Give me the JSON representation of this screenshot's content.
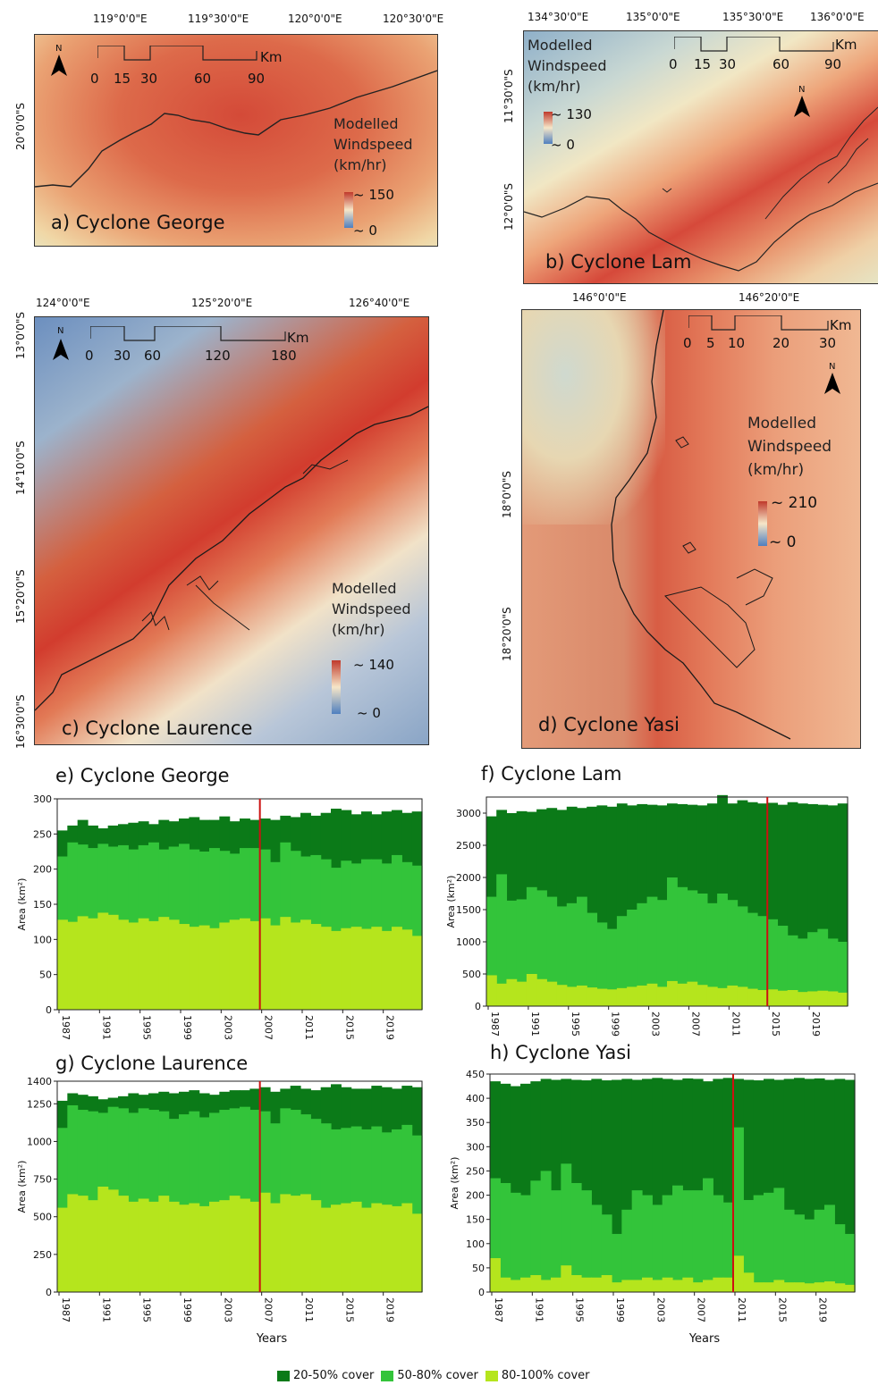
{
  "maps": [
    {
      "id": "a",
      "label": "a) Cyclone George",
      "lon_ticks": [
        "119°0'0\"E",
        "119°30'0\"E",
        "120°0'0\"E",
        "120°30'0\"E"
      ],
      "lat_ticks": [
        "20°0'0\"S"
      ],
      "legend_title": [
        "Modelled",
        "Windspeed",
        "(km/hr)"
      ],
      "legend_max": "~ 150",
      "legend_min": "~ 0",
      "scale": [
        "0",
        "15",
        "30",
        "60",
        "90"
      ],
      "scale_unit": "Km"
    },
    {
      "id": "b",
      "label": "b) Cyclone Lam",
      "lon_ticks": [
        "134°30'0\"E",
        "135°0'0\"E",
        "135°30'0\"E",
        "136°0'0\"E"
      ],
      "lat_ticks": [
        "11°30'0\"S",
        "12°0'0\"S"
      ],
      "legend_title": [
        "Modelled",
        "Windspeed",
        "(km/hr)"
      ],
      "legend_max": "~ 130",
      "legend_min": "~ 0",
      "scale": [
        "0",
        "15",
        "30",
        "60",
        "90"
      ],
      "scale_unit": "Km"
    },
    {
      "id": "c",
      "label": "c) Cyclone Laurence",
      "lon_ticks": [
        "124°0'0\"E",
        "125°20'0\"E",
        "126°40'0\"E"
      ],
      "lat_ticks": [
        "13°0'0\"S",
        "14°10'0\"S",
        "15°20'0\"S",
        "16°30'0\"S"
      ],
      "legend_title": [
        "Modelled",
        "Windspeed",
        "(km/hr)"
      ],
      "legend_max": "~ 140",
      "legend_min": "~ 0",
      "scale": [
        "0",
        "30",
        "60",
        "120",
        "180"
      ],
      "scale_unit": "Km"
    },
    {
      "id": "d",
      "label": "d) Cyclone Yasi",
      "lon_ticks": [
        "146°0'0\"E",
        "146°20'0\"E"
      ],
      "lat_ticks": [
        "18°0'0\"S",
        "18°20'0\"S"
      ],
      "legend_title": [
        "Modelled",
        "Windspeed",
        "(km/hr)"
      ],
      "legend_max": "~ 210",
      "legend_min": "~ 0",
      "scale": [
        "0",
        "5",
        "10",
        "20",
        "30"
      ],
      "scale_unit": "Km"
    }
  ],
  "colors": {
    "c2050": "#0b7a18",
    "c5080": "#33c43a",
    "c80100": "#b5e51d",
    "event_line": "#cc1111"
  },
  "legend": [
    "20-50% cover",
    "50-80% cover",
    "80-100% cover"
  ],
  "chart_data": [
    {
      "type": "area",
      "title": "e) Cyclone George",
      "ylabel": "Area (km²)",
      "xlabel": "",
      "x": [
        1987,
        1988,
        1989,
        1990,
        1991,
        1992,
        1993,
        1994,
        1995,
        1996,
        1997,
        1998,
        1999,
        2000,
        2001,
        2002,
        2003,
        2004,
        2005,
        2006,
        2007,
        2008,
        2009,
        2010,
        2011,
        2012,
        2013,
        2014,
        2015,
        2016,
        2017,
        2018,
        2019,
        2020,
        2021,
        2022
      ],
      "xticks": [
        "1987",
        "1991",
        "1995",
        "1999",
        "2003",
        "2007",
        "2011",
        "2015",
        "2019"
      ],
      "ylim": [
        0,
        300
      ],
      "yticks": [
        0,
        50,
        100,
        150,
        200,
        250,
        300
      ],
      "event_year": 2007,
      "series": [
        {
          "name": "80-100% cover",
          "values": [
            128,
            125,
            133,
            130,
            138,
            135,
            128,
            124,
            130,
            126,
            132,
            128,
            122,
            118,
            120,
            116,
            124,
            128,
            130,
            126,
            130,
            120,
            132,
            124,
            128,
            122,
            118,
            112,
            116,
            118,
            115,
            118,
            112,
            118,
            114,
            105
          ]
        },
        {
          "name": "50-80% cover",
          "values": [
            218,
            238,
            235,
            230,
            236,
            232,
            234,
            228,
            234,
            238,
            228,
            232,
            236,
            228,
            225,
            230,
            226,
            222,
            230,
            230,
            228,
            210,
            238,
            226,
            218,
            220,
            214,
            202,
            212,
            208,
            214,
            214,
            208,
            220,
            210,
            205
          ]
        },
        {
          "name": "20-50% cover",
          "values": [
            255,
            262,
            270,
            262,
            258,
            262,
            264,
            266,
            268,
            264,
            270,
            268,
            272,
            274,
            270,
            270,
            275,
            268,
            272,
            270,
            272,
            270,
            276,
            274,
            280,
            276,
            280,
            286,
            284,
            278,
            282,
            278,
            282,
            284,
            280,
            282
          ]
        }
      ]
    },
    {
      "type": "area",
      "title": "f) Cyclone Lam",
      "ylabel": "Area (km²)",
      "xlabel": "",
      "x": [
        1987,
        1988,
        1989,
        1990,
        1991,
        1992,
        1993,
        1994,
        1995,
        1996,
        1997,
        1998,
        1999,
        2000,
        2001,
        2002,
        2003,
        2004,
        2005,
        2006,
        2007,
        2008,
        2009,
        2010,
        2011,
        2012,
        2013,
        2014,
        2015,
        2016,
        2017,
        2018,
        2019,
        2020,
        2021,
        2022
      ],
      "xticks": [
        "1987",
        "1991",
        "1995",
        "1999",
        "2003",
        "2007",
        "2011",
        "2015",
        "2019"
      ],
      "ylim": [
        0,
        3250
      ],
      "yticks": [
        0,
        500,
        1000,
        1500,
        2000,
        2500,
        3000
      ],
      "event_year": 2015,
      "series": [
        {
          "name": "80-100% cover",
          "values": [
            480,
            350,
            420,
            380,
            500,
            420,
            380,
            330,
            300,
            320,
            290,
            270,
            260,
            280,
            300,
            320,
            350,
            300,
            390,
            350,
            380,
            330,
            300,
            280,
            320,
            300,
            270,
            250,
            260,
            240,
            250,
            220,
            230,
            240,
            230,
            210
          ]
        },
        {
          "name": "50-80% cover",
          "values": [
            1700,
            2050,
            1640,
            1660,
            1850,
            1800,
            1700,
            1550,
            1600,
            1700,
            1450,
            1300,
            1200,
            1400,
            1500,
            1600,
            1700,
            1650,
            2000,
            1850,
            1800,
            1750,
            1600,
            1750,
            1650,
            1550,
            1450,
            1400,
            1350,
            1250,
            1100,
            1050,
            1150,
            1200,
            1050,
            1000
          ]
        },
        {
          "name": "20-50% cover",
          "values": [
            2950,
            3050,
            3000,
            3030,
            3020,
            3060,
            3080,
            3050,
            3100,
            3080,
            3100,
            3120,
            3100,
            3150,
            3120,
            3140,
            3130,
            3120,
            3150,
            3140,
            3130,
            3120,
            3150,
            3280,
            3150,
            3200,
            3170,
            3150,
            3160,
            3130,
            3170,
            3150,
            3140,
            3130,
            3120,
            3150
          ]
        }
      ]
    },
    {
      "type": "area",
      "title": "g) Cyclone Laurence",
      "ylabel": "Area (km²)",
      "xlabel": "Years",
      "x": [
        1987,
        1988,
        1989,
        1990,
        1991,
        1992,
        1993,
        1994,
        1995,
        1996,
        1997,
        1998,
        1999,
        2000,
        2001,
        2002,
        2003,
        2004,
        2005,
        2006,
        2007,
        2008,
        2009,
        2010,
        2011,
        2012,
        2013,
        2014,
        2015,
        2016,
        2017,
        2018,
        2019,
        2020,
        2021,
        2022
      ],
      "xticks": [
        "1987",
        "1991",
        "1995",
        "1999",
        "2003",
        "2007",
        "2011",
        "2015",
        "2019"
      ],
      "ylim": [
        0,
        1400
      ],
      "yticks": [
        0,
        250,
        500,
        750,
        1000,
        1250,
        1400
      ],
      "event_year": 2007,
      "series": [
        {
          "name": "80-100% cover",
          "values": [
            560,
            650,
            640,
            610,
            700,
            680,
            640,
            600,
            620,
            600,
            640,
            600,
            580,
            590,
            570,
            600,
            610,
            640,
            620,
            600,
            660,
            590,
            650,
            640,
            650,
            610,
            560,
            580,
            590,
            600,
            560,
            590,
            580,
            570,
            590,
            520
          ]
        },
        {
          "name": "50-80% cover",
          "values": [
            1090,
            1240,
            1210,
            1200,
            1190,
            1230,
            1220,
            1190,
            1220,
            1210,
            1200,
            1150,
            1180,
            1200,
            1160,
            1190,
            1210,
            1220,
            1230,
            1210,
            1200,
            1120,
            1220,
            1210,
            1180,
            1150,
            1120,
            1080,
            1090,
            1100,
            1080,
            1100,
            1060,
            1080,
            1110,
            1040
          ]
        },
        {
          "name": "20-50% cover",
          "values": [
            1270,
            1320,
            1310,
            1300,
            1280,
            1290,
            1300,
            1320,
            1310,
            1320,
            1330,
            1320,
            1330,
            1340,
            1320,
            1310,
            1330,
            1340,
            1340,
            1350,
            1360,
            1330,
            1350,
            1370,
            1350,
            1340,
            1360,
            1380,
            1360,
            1350,
            1350,
            1370,
            1360,
            1350,
            1370,
            1360
          ]
        }
      ]
    },
    {
      "type": "area",
      "title": "h) Cyclone Yasi",
      "ylabel": "Area (km²)",
      "xlabel": "Years",
      "x": [
        1987,
        1988,
        1989,
        1990,
        1991,
        1992,
        1993,
        1994,
        1995,
        1996,
        1997,
        1998,
        1999,
        2000,
        2001,
        2002,
        2003,
        2004,
        2005,
        2006,
        2007,
        2008,
        2009,
        2010,
        2011,
        2012,
        2013,
        2014,
        2015,
        2016,
        2017,
        2018,
        2019,
        2020,
        2021,
        2022
      ],
      "xticks": [
        "1987",
        "1991",
        "1995",
        "1999",
        "2003",
        "2007",
        "2011",
        "2015",
        "2019"
      ],
      "ylim": [
        0,
        450
      ],
      "yticks": [
        0,
        50,
        100,
        150,
        200,
        250,
        300,
        350,
        400,
        450
      ],
      "event_year": 2011,
      "series": [
        {
          "name": "80-100% cover",
          "values": [
            70,
            30,
            25,
            30,
            35,
            25,
            30,
            55,
            35,
            30,
            30,
            35,
            20,
            25,
            25,
            30,
            25,
            30,
            25,
            30,
            20,
            25,
            30,
            30,
            75,
            40,
            20,
            20,
            25,
            20,
            20,
            18,
            20,
            22,
            18,
            15
          ]
        },
        {
          "name": "50-80% cover",
          "values": [
            235,
            225,
            205,
            200,
            230,
            250,
            210,
            265,
            225,
            210,
            180,
            160,
            120,
            170,
            210,
            200,
            180,
            200,
            220,
            210,
            210,
            235,
            200,
            185,
            340,
            190,
            200,
            205,
            215,
            170,
            160,
            150,
            170,
            180,
            140,
            120
          ]
        },
        {
          "name": "20-50% cover",
          "values": [
            435,
            430,
            425,
            430,
            435,
            440,
            438,
            440,
            438,
            437,
            440,
            437,
            438,
            440,
            438,
            440,
            442,
            440,
            438,
            441,
            440,
            435,
            440,
            442,
            440,
            438,
            437,
            440,
            438,
            440,
            442,
            440,
            441,
            438,
            440,
            438
          ]
        }
      ]
    }
  ]
}
